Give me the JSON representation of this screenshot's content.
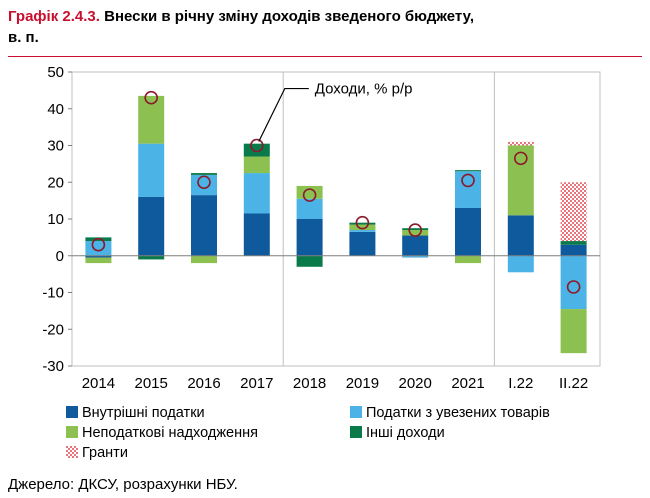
{
  "header": {
    "figure_label": "Графік 2.4.3.",
    "title": "Внески в річну зміну доходів зведеного бюджету,",
    "unit_line": "в. п."
  },
  "source": "Джерело: ДКСУ, розрахунки НБУ.",
  "colors": {
    "domestic": "#0e5a9c",
    "imports": "#4bb3e6",
    "nontax": "#8cc152",
    "other": "#0a7a4a",
    "grants": "#f4a3a8",
    "marker": "#8b1a2b",
    "accent": "#c8102e"
  },
  "chart_data": {
    "type": "bar",
    "stacked": true,
    "title": "Внески в річну зміну доходів зведеного бюджету, в. п.",
    "categories": [
      "2014",
      "2015",
      "2016",
      "2017",
      "2018",
      "2019",
      "2020",
      "2021",
      "I.22",
      "II.22"
    ],
    "ylim": [
      -30,
      50
    ],
    "yticks": [
      -30,
      -20,
      -10,
      0,
      10,
      20,
      30,
      40,
      50
    ],
    "grid": false,
    "separators_after": [
      "2017",
      "2021"
    ],
    "series": [
      {
        "name": "Внутрішні податки",
        "key": "domestic",
        "values": [
          -0.5,
          16.0,
          16.5,
          11.5,
          10.0,
          6.5,
          5.5,
          13.0,
          11.0,
          3.0
        ]
      },
      {
        "name": "Податки з увезених товарів",
        "key": "imports",
        "values": [
          4.0,
          14.5,
          5.5,
          11.0,
          5.5,
          0.5,
          -0.5,
          10.0,
          -4.5,
          -14.5
        ]
      },
      {
        "name": "Неподаткові надходження",
        "key": "nontax",
        "values": [
          -1.5,
          13.0,
          -2.0,
          4.5,
          3.5,
          1.5,
          1.5,
          -2.0,
          19.0,
          -12.0
        ]
      },
      {
        "name": "Інші доходи",
        "key": "other",
        "values": [
          1.0,
          -1.0,
          0.5,
          3.5,
          -3.0,
          0.5,
          0.5,
          0.3,
          0.0,
          1.0
        ]
      },
      {
        "name": "Гранти",
        "key": "grants",
        "values": [
          0.0,
          0.0,
          0.0,
          0.0,
          0.0,
          0.0,
          0.0,
          0.0,
          1.0,
          16.0
        ]
      }
    ],
    "line": {
      "name": "Доходи, % р/р",
      "values": [
        3.0,
        43.0,
        20.0,
        30.0,
        16.5,
        9.0,
        7.0,
        20.5,
        26.5,
        -8.5
      ]
    },
    "annotation": "Доходи, % р/р"
  },
  "legend": [
    {
      "label": "Внутрішні податки",
      "key": "domestic"
    },
    {
      "label": "Податки з увезених товарів",
      "key": "imports"
    },
    {
      "label": "Неподаткові надходження",
      "key": "nontax"
    },
    {
      "label": "Інші доходи",
      "key": "other"
    },
    {
      "label": "Гранти",
      "key": "grants"
    }
  ]
}
